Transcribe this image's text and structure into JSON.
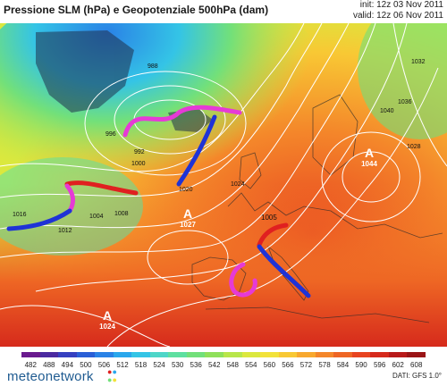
{
  "header": {
    "title": "Pressione SLM (hPa) e Geopotenziale 500hPa (dam)",
    "init": "init: 12z 03 Nov 2011",
    "valid": "valid: 12z 06 Nov 2011"
  },
  "map": {
    "isobar_labels": [
      "988",
      "992",
      "996",
      "1000",
      "1004",
      "1008",
      "1012",
      "1016",
      "1020",
      "1024",
      "1028",
      "1032",
      "1036",
      "1040",
      "1044"
    ],
    "highs": [
      {
        "symbol": "A",
        "value": "1044"
      },
      {
        "symbol": "A",
        "value": "1027"
      },
      {
        "symbol": "A",
        "value": "1024"
      }
    ],
    "low_label": "1005"
  },
  "scale": {
    "ticks": [
      "482",
      "488",
      "494",
      "500",
      "506",
      "512",
      "518",
      "524",
      "530",
      "536",
      "542",
      "548",
      "554",
      "560",
      "566",
      "572",
      "578",
      "584",
      "590",
      "596",
      "602",
      "608"
    ],
    "colors": [
      "#6a1a8e",
      "#4b2aa0",
      "#3640c0",
      "#2a5fd6",
      "#2a82e6",
      "#2aa7ec",
      "#34c4e6",
      "#4ed6c8",
      "#5ee0a0",
      "#72e07a",
      "#8fe05a",
      "#b8e64a",
      "#dbe83e",
      "#f2e23a",
      "#f8c834",
      "#f8a82e",
      "#f4862a",
      "#ee6624",
      "#e84420",
      "#d62a1c",
      "#b81a1a",
      "#9a1416"
    ]
  },
  "footer": {
    "brand": "meteonetwork",
    "data_source": "DATI: GFS 1.0°"
  },
  "overlay_colors": {
    "warm_front": "#e02020",
    "cold_front": "#1f33d6",
    "occluded": "#e63ad6"
  }
}
